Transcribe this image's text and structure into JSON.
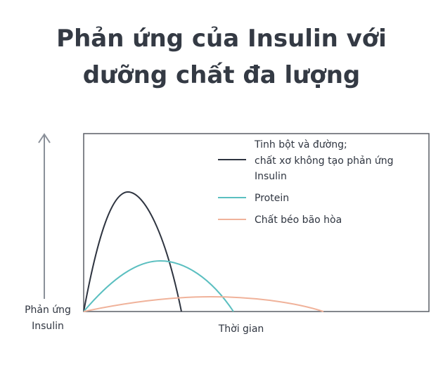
{
  "title": [
    "Phản ứng của Insulin với",
    "dưỡng chất đa lượng"
  ],
  "y_axis_label": [
    "Phản ứng",
    "Insulin"
  ],
  "x_axis_label": "Thời gian",
  "legend": [
    {
      "label": [
        "Tinh bột và đường;",
        "chất xơ không tạo phản ứng",
        "Insulin"
      ]
    },
    {
      "label": [
        "Protein"
      ]
    },
    {
      "label": [
        "Chất béo bão hòa"
      ]
    }
  ]
}
